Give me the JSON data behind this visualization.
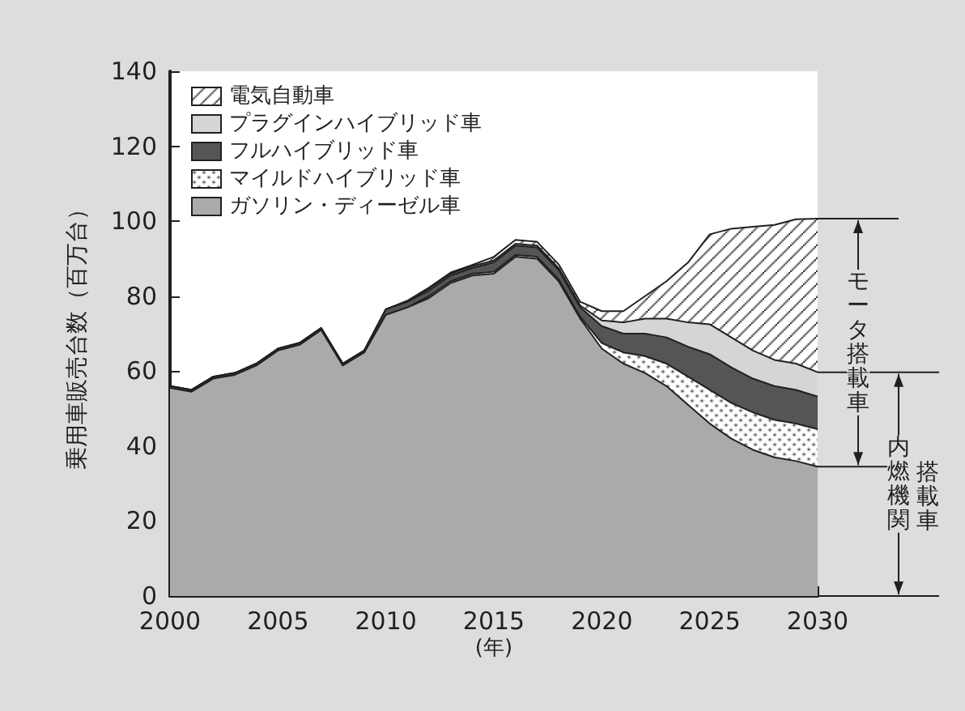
{
  "chart_data": {
    "type": "area",
    "stacked": true,
    "xlabel": "(年)",
    "ylabel": "乗用車販売台数（百万台）",
    "x": [
      2000,
      2001,
      2002,
      2003,
      2004,
      2005,
      2006,
      2007,
      2008,
      2009,
      2010,
      2011,
      2012,
      2013,
      2014,
      2015,
      2016,
      2017,
      2018,
      2019,
      2020,
      2021,
      2022,
      2023,
      2024,
      2025,
      2026,
      2027,
      2028,
      2029,
      2030
    ],
    "xlim": [
      2000,
      2030
    ],
    "xticks": [
      2000,
      2005,
      2010,
      2015,
      2020,
      2025,
      2030
    ],
    "ylim": [
      0,
      140
    ],
    "yticks": [
      0,
      20,
      40,
      60,
      80,
      100,
      120,
      140
    ],
    "series": [
      {
        "name": "ガソリン・ディーゼル車",
        "color": "#a9abaa",
        "values": [
          55.5,
          54.5,
          58,
          59,
          61.5,
          65.5,
          67,
          71,
          61.5,
          65,
          75,
          77,
          79.5,
          83.5,
          85.5,
          86,
          90.5,
          90,
          84,
          74,
          66,
          62,
          59.5,
          56,
          51,
          46,
          42,
          39,
          37,
          36,
          34.5
        ]
      },
      {
        "name": "マイルドハイブリッド車",
        "color": "#ffffff",
        "values": [
          0,
          0,
          0,
          0,
          0,
          0,
          0,
          0,
          0,
          0,
          0,
          0,
          0.5,
          0.5,
          0.5,
          0.5,
          0.5,
          0.5,
          0.5,
          0.5,
          1.5,
          3,
          4.5,
          6,
          7.5,
          9,
          9.5,
          10,
          10,
          10,
          10
        ]
      },
      {
        "name": "フルハイブリッド車",
        "color": "#555555",
        "values": [
          0.5,
          0.5,
          0.5,
          0.5,
          0.5,
          0.5,
          0.5,
          0.5,
          0.5,
          0.5,
          1.5,
          1.5,
          1.5,
          1.5,
          1.5,
          2.5,
          2.5,
          2.5,
          2.5,
          2.5,
          4.5,
          5,
          6,
          7,
          8,
          9.5,
          9.5,
          9,
          9,
          9,
          8.7
        ]
      },
      {
        "name": "プラグインハイブリッド車",
        "color": "#d4d5d5",
        "values": [
          0,
          0,
          0,
          0,
          0,
          0,
          0,
          0,
          0,
          0,
          0,
          0,
          0.5,
          0.5,
          0.5,
          0.5,
          0.5,
          0.5,
          0.5,
          0.5,
          1.5,
          3,
          4,
          5,
          6.5,
          8,
          8,
          7.5,
          7,
          7,
          6.5
        ]
      },
      {
        "name": "電気自動車",
        "color": "#ffffff",
        "values": [
          0,
          0,
          0,
          0,
          0,
          0,
          0,
          0,
          0,
          0,
          0,
          0.3,
          0.3,
          0.3,
          0.3,
          1,
          1,
          1,
          1,
          1,
          2.5,
          3,
          6,
          10,
          16,
          24,
          29,
          33,
          36,
          38.5,
          41
        ]
      }
    ],
    "annotations": [
      "モータ搭載車",
      "内燃機関搭載車"
    ],
    "legend": "top left",
    "grid": false,
    "marker": "none",
    "line_style": "solid"
  }
}
